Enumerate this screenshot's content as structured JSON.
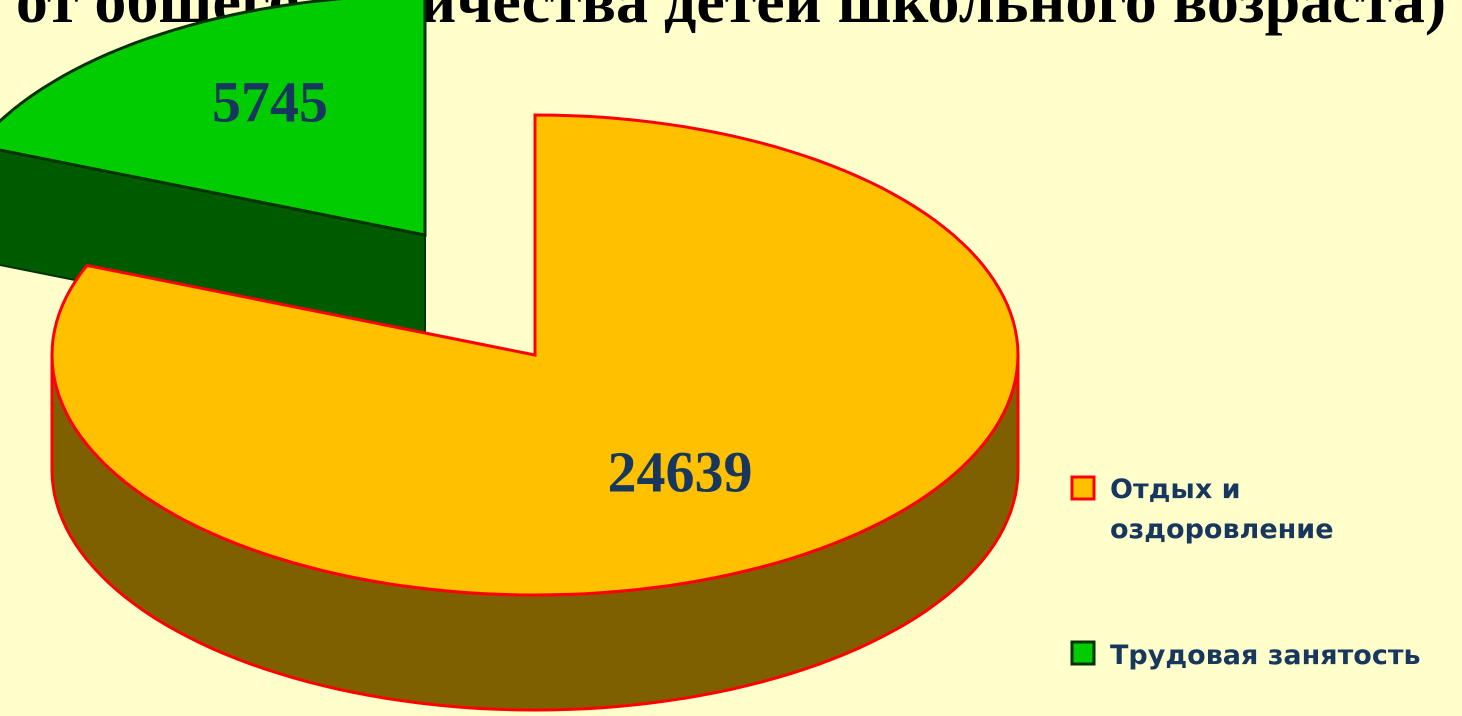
{
  "chart_data": {
    "type": "pie",
    "title": "от общего количества детей школьного возраста)",
    "categories": [
      "Отдых и оздоровление",
      "Трудовая занятость"
    ],
    "values": [
      24639,
      5745
    ],
    "colors": [
      "#ffc000",
      "#00cc00"
    ],
    "side_colors": [
      "#7f6000",
      "#005a00"
    ],
    "edge_colors": [
      "#ff0000",
      "#003300"
    ]
  }
}
